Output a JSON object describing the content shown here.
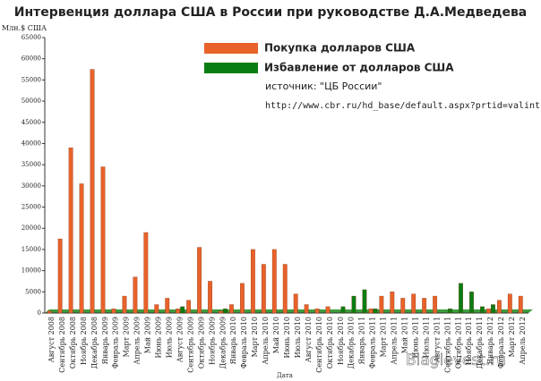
{
  "chart_data": {
    "type": "bar",
    "title": "Интервенция доллара США в России при руководстве Д.А.Медведева",
    "y_label": "Млн.$ США",
    "x_label": "Дата",
    "annotations": [
      "источник: \"ЦБ России\"",
      "http://www.cbr.ru/hd_base/default.aspx?prtid=valint"
    ],
    "watermark": "Blaglevest.ru",
    "categories": [
      "Август 2008",
      "Сентябрь 2008",
      "Октябрь 2008",
      "Ноябрь 2008",
      "Декабрь 2008",
      "Январь 2009",
      "Февраль 2009",
      "Март 2009",
      "Апрель 2009",
      "Май 2009",
      "Июнь 2009",
      "Июль 2009",
      "Август 2009",
      "Сентябрь 2009",
      "Октябрь 2009",
      "Ноябрь 2009",
      "Декабрь 2009",
      "Январь 2010",
      "Февраль 2010",
      "Март 2010",
      "Апрель 2010",
      "Май 2010",
      "Июнь 2010",
      "Июль 2010",
      "Август 2010",
      "Сентябрь 2010",
      "Октябрь 2010",
      "Ноябрь 2010",
      "Декабрь 2010",
      "Январь 2011",
      "Февраль 2011",
      "Март 2011",
      "Апрель 2011",
      "Май 2011",
      "Июнь 2011",
      "Июль 2011",
      "Август 2011",
      "Сентябрь 2011",
      "Октябрь 2011",
      "Ноябрь 2011",
      "Декабрь 2011",
      "Январь 2012",
      "Февраль 2012",
      "Март 2012",
      "Апрель 2012"
    ],
    "series": [
      {
        "name": "Покупка долларов США",
        "color": "#e8622a",
        "values": [
          500,
          17500,
          39000,
          30500,
          57500,
          34500,
          1000,
          4000,
          8500,
          19000,
          2000,
          3500,
          1000,
          3000,
          15500,
          7500,
          500,
          2000,
          7000,
          15000,
          11500,
          15000,
          11500,
          4500,
          2000,
          1000,
          1500,
          0,
          0,
          0,
          1000,
          4000,
          5000,
          3500,
          4500,
          3500,
          4000,
          0,
          0,
          0,
          0,
          1000,
          3000,
          4500,
          4000
        ]
      },
      {
        "name": "Избавление от долларов США",
        "color": "#0a7d12",
        "values": [
          0,
          0,
          0,
          0,
          0,
          0,
          0,
          0,
          0,
          0,
          0,
          0,
          1500,
          0,
          0,
          0,
          1000,
          0,
          0,
          0,
          0,
          0,
          0,
          0,
          0,
          0,
          0,
          1500,
          4000,
          5500,
          1000,
          0,
          0,
          0,
          0,
          0,
          0,
          1000,
          7000,
          5000,
          1500,
          2000,
          0,
          0,
          0
        ]
      }
    ],
    "ylim": [
      0,
      65000
    ],
    "yticks": [
      0,
      5000,
      10000,
      15000,
      20000,
      25000,
      30000,
      35000,
      40000,
      45000,
      50000,
      55000,
      60000,
      65000
    ],
    "grid": false
  }
}
